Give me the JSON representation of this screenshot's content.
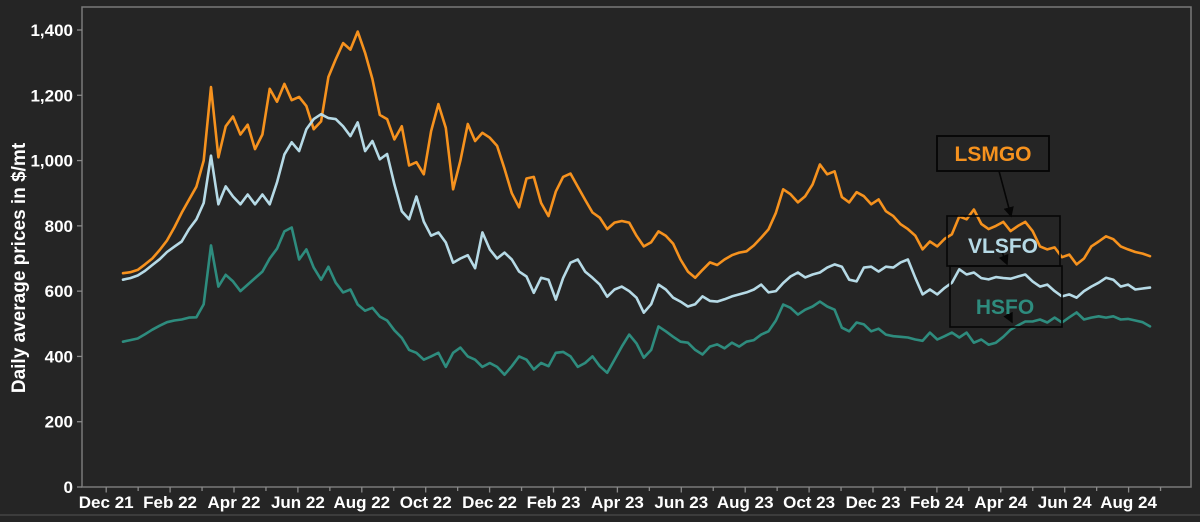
{
  "figure": {
    "bg_color": "#252525",
    "plot_border_color": "#7a7a7a",
    "tick_color": "#8a8a8a",
    "text_color": "#ffffff",
    "annotation_border_color": "#060606"
  },
  "chart_data": {
    "type": "line",
    "title": "",
    "xlabel": "",
    "ylabel": "Daily average prices in $/mt",
    "ylim": [
      0,
      1400
    ],
    "grid": false,
    "legend_position": "annotation boxes with leader arrows at right side of plot",
    "y_tick_labels": [
      "0",
      "200",
      "400",
      "600",
      "800",
      "1,000",
      "1,200",
      "1,400"
    ],
    "y_tick_values": [
      0,
      200,
      400,
      600,
      800,
      1000,
      1200,
      1400
    ],
    "x_tick_labels": [
      "Dec 21",
      "Feb 22",
      "Apr 22",
      "Jun 22",
      "Aug 22",
      "Oct 22",
      "Dec 22",
      "Feb 23",
      "Apr 23",
      "Jun 23",
      "Aug 23",
      "Oct 23",
      "Dec 23",
      "Feb 24",
      "Apr 24",
      "Jun 24",
      "Aug 24"
    ],
    "x_range_note": "daily price series from mid-Dec 2021 to Aug 2024, values below sampled ~weekly",
    "series": [
      {
        "name": "LSMGO",
        "color": "#F6921E",
        "values": [
          655,
          658,
          665,
          682,
          700,
          726,
          755,
          795,
          840,
          880,
          920,
          1000,
          1225,
          1010,
          1105,
          1135,
          1080,
          1110,
          1035,
          1080,
          1220,
          1180,
          1235,
          1185,
          1195,
          1167,
          1096,
          1120,
          1256,
          1310,
          1360,
          1340,
          1395,
          1330,
          1250,
          1140,
          1127,
          1065,
          1105,
          985,
          995,
          958,
          1090,
          1173,
          1100,
          912,
          1000,
          1112,
          1060,
          1085,
          1070,
          1045,
          975,
          900,
          857,
          945,
          950,
          870,
          830,
          905,
          950,
          960,
          920,
          880,
          841,
          825,
          790,
          810,
          815,
          810,
          770,
          737,
          750,
          783,
          770,
          745,
          697,
          660,
          641,
          665,
          688,
          680,
          697,
          710,
          718,
          722,
          740,
          764,
          789,
          840,
          912,
          897,
          872,
          891,
          927,
          988,
          958,
          967,
          888,
          872,
          903,
          891,
          866,
          881,
          845,
          830,
          805,
          790,
          770,
          728,
          752,
          737,
          760,
          774,
          829,
          820,
          850,
          806,
          790,
          800,
          812,
          784,
          800,
          812,
          784,
          737,
          728,
          734,
          704,
          712,
          682,
          700,
          737,
          752,
          768,
          759,
          737,
          728,
          720,
          715,
          707
        ]
      },
      {
        "name": "VLSFO",
        "color": "#B6DAE6",
        "values": [
          635,
          640,
          648,
          662,
          680,
          698,
          720,
          736,
          752,
          790,
          820,
          870,
          1015,
          866,
          921,
          890,
          866,
          896,
          866,
          896,
          866,
          933,
          1019,
          1056,
          1029,
          1096,
          1127,
          1142,
          1130,
          1127,
          1105,
          1075,
          1117,
          1029,
          1060,
          1004,
          1020,
          927,
          845,
          820,
          890,
          813,
          770,
          780,
          749,
          687,
          700,
          710,
          670,
          780,
          728,
          700,
          718,
          697,
          660,
          645,
          595,
          641,
          635,
          574,
          640,
          687,
          697,
          660,
          641,
          620,
          583,
          605,
          614,
          600,
          580,
          534,
          560,
          620,
          605,
          580,
          568,
          553,
          560,
          584,
          570,
          568,
          575,
          584,
          590,
          596,
          605,
          620,
          596,
          600,
          625,
          645,
          657,
          642,
          651,
          657,
          672,
          682,
          675,
          635,
          630,
          672,
          675,
          660,
          675,
          672,
          688,
          697,
          641,
          590,
          605,
          590,
          610,
          626,
          667,
          651,
          657,
          640,
          636,
          643,
          640,
          638,
          645,
          651,
          630,
          614,
          620,
          600,
          584,
          590,
          580,
          600,
          614,
          626,
          641,
          635,
          614,
          620,
          605,
          608,
          611
        ]
      },
      {
        "name": "HSFO",
        "color": "#2E8C7E",
        "values": [
          445,
          450,
          455,
          468,
          482,
          494,
          505,
          510,
          513,
          519,
          520,
          560,
          740,
          614,
          650,
          630,
          600,
          620,
          640,
          660,
          700,
          730,
          783,
          795,
          697,
          728,
          672,
          635,
          675,
          626,
          596,
          605,
          559,
          540,
          549,
          522,
          510,
          480,
          457,
          420,
          411,
          390,
          400,
          411,
          368,
          411,
          427,
          400,
          390,
          368,
          380,
          368,
          344,
          370,
          400,
          390,
          360,
          380,
          370,
          411,
          414,
          400,
          368,
          380,
          400,
          370,
          350,
          390,
          430,
          467,
          440,
          396,
          420,
          492,
          477,
          460,
          445,
          442,
          420,
          406,
          430,
          437,
          425,
          442,
          430,
          445,
          450,
          467,
          477,
          510,
          559,
          549,
          528,
          543,
          553,
          568,
          553,
          543,
          488,
          477,
          504,
          498,
          477,
          485,
          467,
          462,
          460,
          458,
          452,
          448,
          473,
          452,
          462,
          473,
          458,
          473,
          442,
          452,
          436,
          442,
          460,
          482,
          495,
          507,
          507,
          513,
          504,
          519,
          504,
          520,
          535,
          513,
          519,
          523,
          519,
          523,
          513,
          515,
          510,
          505,
          492
        ]
      }
    ]
  }
}
